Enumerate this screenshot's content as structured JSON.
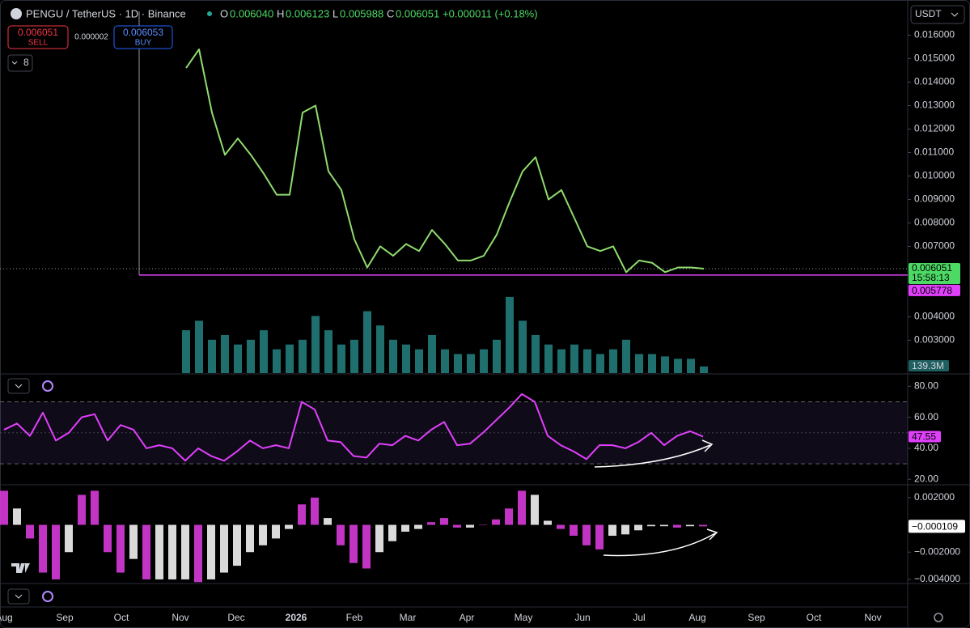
{
  "header": {
    "symbol": "PENGU / TetherUS · 1D · Binance",
    "open_label": "O",
    "open": "0.006040",
    "high_label": "H",
    "high": "0.006123",
    "low_label": "L",
    "low": "0.005988",
    "close_label": "C",
    "close": "0.006051",
    "change": "+0.000011 (+0.18%)",
    "sell_price": "0.006051",
    "sell_label": "SELL",
    "spread": "0.000002",
    "buy_price": "0.006053",
    "buy_label": "BUY",
    "indicator_count": "8",
    "currency": "USDT"
  },
  "time_axis": [
    "Aug",
    "Sep",
    "Oct",
    "Nov",
    "Dec",
    "2026",
    "Feb",
    "Mar",
    "Apr",
    "May",
    "Jun",
    "Jul",
    "Aug",
    "Sep",
    "Oct",
    "Nov"
  ],
  "chart_data": [
    {
      "type": "line",
      "color": "#8fdc6e",
      "values": [
        0.0146,
        0.0154,
        0.0127,
        0.0109,
        0.0116,
        0.0109,
        0.0101,
        0.0092,
        0.0092,
        0.0127,
        0.013,
        0.0102,
        0.0094,
        0.0073,
        0.0061,
        0.007,
        0.0066,
        0.0071,
        0.0068,
        0.0077,
        0.0071,
        0.0064,
        0.0064,
        0.0066,
        0.0075,
        0.0089,
        0.0102,
        0.0108,
        0.009,
        0.0094,
        0.0082,
        0.007,
        0.0068,
        0.007,
        0.0059,
        0.0064,
        0.0063,
        0.0059,
        0.0061,
        0.0061,
        0.006051
      ],
      "ylim": [
        0.0016,
        0.0175
      ],
      "yticks": [
        {
          "value": 0.016,
          "label": "0.016000"
        },
        {
          "value": 0.015,
          "label": "0.015000"
        },
        {
          "value": 0.014,
          "label": "0.014000"
        },
        {
          "value": 0.013,
          "label": "0.013000"
        },
        {
          "value": 0.012,
          "label": "0.012000"
        },
        {
          "value": 0.011,
          "label": "0.011000"
        },
        {
          "value": 0.01,
          "label": "0.010000"
        },
        {
          "value": 0.009,
          "label": "0.009000"
        },
        {
          "value": 0.008,
          "label": "0.008000"
        },
        {
          "value": 0.007,
          "label": "0.007000"
        },
        {
          "value": 0.004,
          "label": "0.004000"
        },
        {
          "value": 0.003,
          "label": "0.003000"
        }
      ],
      "last_price": 0.006051,
      "countdown": "15:58:13",
      "level": 0.005778,
      "level_color": "#e040fb",
      "volume": {
        "color": "#1f6f6f",
        "values": [
          900,
          1100,
          700,
          800,
          600,
          700,
          900,
          500,
          600,
          700,
          1200,
          900,
          600,
          700,
          1300,
          1000,
          700,
          600,
          500,
          800,
          500,
          400,
          400,
          500,
          700,
          1600,
          1100,
          800,
          600,
          500,
          600,
          500,
          400,
          500,
          700,
          400,
          400,
          350,
          300,
          300,
          139.3
        ],
        "last": {
          "value": 139.3,
          "label": "139.3M"
        }
      }
    },
    {
      "type": "line",
      "color": "#e040fb",
      "values": [
        52,
        56,
        48,
        63,
        45,
        50,
        60,
        62,
        45,
        55,
        52,
        40,
        42,
        40,
        32,
        40,
        35,
        32,
        38,
        45,
        40,
        42,
        40,
        70,
        65,
        45,
        44,
        35,
        34,
        43,
        42,
        48,
        45,
        52,
        57,
        42,
        43,
        50,
        58,
        66,
        75,
        70,
        48,
        42,
        38,
        33,
        42,
        42,
        40,
        44,
        50,
        42,
        48,
        51,
        47.55
      ],
      "ylim": [
        17,
        88
      ],
      "yticks": [
        {
          "value": 80,
          "label": "80.00"
        },
        {
          "value": 60,
          "label": "60.00"
        },
        {
          "value": 40,
          "label": "40.00"
        },
        {
          "value": 20,
          "label": "20.00"
        }
      ],
      "bands": [
        70,
        50,
        30
      ],
      "last_value": 47.55
    },
    {
      "type": "bar",
      "colors": [
        "#d63ad9",
        "#f2f2f2"
      ],
      "values": [
        0.0025,
        0.0012,
        -0.001,
        -0.0035,
        -0.004,
        -0.002,
        0.0022,
        0.0025,
        -0.002,
        -0.0035,
        -0.0025,
        -0.004,
        -0.004,
        -0.004,
        -0.004,
        -0.0042,
        -0.004,
        -0.0035,
        -0.003,
        -0.002,
        -0.0015,
        -0.001,
        -0.0003,
        0.0015,
        0.002,
        0.0005,
        -0.0015,
        -0.0028,
        -0.0032,
        -0.002,
        -0.0012,
        -0.0005,
        -0.0003,
        0.0002,
        0.0005,
        -0.0002,
        -0.0002,
        0,
        0.0004,
        0.0012,
        0.0025,
        0.0022,
        0.0003,
        -0.0003,
        -0.0008,
        -0.0015,
        -0.0018,
        -0.0008,
        -0.0007,
        -0.0004,
        -0.0001,
        -0.0001,
        -0.0002,
        -0.0001,
        -0.000109
      ],
      "ylim": [
        -0.00424,
        0.00288
      ],
      "yticks": [
        {
          "value": 0.002,
          "label": "0.002000"
        },
        {
          "value": -0.002,
          "label": "−0.002000"
        },
        {
          "value": -0.004,
          "label": "−0.004000"
        }
      ],
      "last": {
        "value": -0.000109,
        "label": "−0.000109"
      }
    }
  ]
}
